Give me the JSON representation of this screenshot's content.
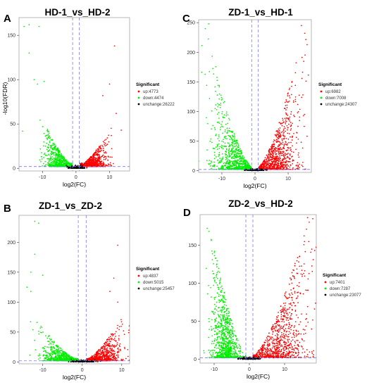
{
  "figure": {
    "panels": [
      {
        "letter": "A",
        "title": "HD-1_vs_HD-2"
      },
      {
        "letter": "C",
        "title": "ZD-1_vs_HD-1"
      },
      {
        "letter": "B",
        "title": "ZD-1_vs_ZD-2"
      },
      {
        "letter": "D",
        "title": "ZD-2_vs_HD-2"
      }
    ],
    "colors": {
      "up": "#ff0000",
      "down": "#00ee00",
      "unchange": "#000000",
      "threshold": "#7777ff"
    }
  },
  "chart_data": [
    {
      "type": "scatter",
      "subtype": "volcano",
      "title": "HD-1_vs_HD-2",
      "xlabel": "log2(FC)",
      "ylabel": "-log10(FDR)",
      "xlim": [
        -17,
        16
      ],
      "ylim": [
        -3,
        170
      ],
      "xticks": [
        -10,
        0,
        10
      ],
      "yticks": [
        0,
        50,
        100,
        150
      ],
      "thresholds": {
        "log2fc": [
          -1,
          1
        ],
        "neg_log10_fdr": 2
      },
      "legend": {
        "title": "Significant",
        "position": "right",
        "entries": [
          {
            "label": "up:4773",
            "color": "#ff0000"
          },
          {
            "label": "down:4474",
            "color": "#00ee00"
          },
          {
            "label": "unchange:26222",
            "color": "#000000"
          }
        ]
      },
      "series": [
        {
          "name": "up",
          "count": 4773,
          "shape": [
            5.0,
            10.5,
            4.0,
            45
          ],
          "outliers": [
            [
              11.5,
              138
            ],
            [
              10,
              95
            ],
            [
              8,
              82
            ],
            [
              12,
              62
            ],
            [
              13.5,
              43
            ]
          ]
        },
        {
          "name": "down",
          "count": 4474,
          "shape": [
            -5.0,
            10.5,
            4.0,
            60
          ],
          "outliers": [
            [
              -15.5,
              160
            ],
            [
              -14,
              162
            ],
            [
              -11,
              160
            ],
            [
              -9.5,
              98
            ],
            [
              -11.5,
              95
            ],
            [
              -12.5,
              100
            ],
            [
              -14,
              130
            ],
            [
              -16,
              42
            ]
          ]
        },
        {
          "name": "unchange",
          "count": 26222
        }
      ]
    },
    {
      "type": "scatter",
      "subtype": "volcano",
      "title": "ZD-1_vs_HD-1",
      "xlabel": "log2(FC)",
      "ylabel": "",
      "xlim": [
        -17,
        17
      ],
      "ylim": [
        -3,
        255
      ],
      "xticks": [
        -10,
        0,
        10
      ],
      "yticks": [
        0,
        50,
        100,
        150,
        200,
        250
      ],
      "thresholds": {
        "log2fc": [
          -1,
          1
        ],
        "neg_log10_fdr": 2
      },
      "legend": {
        "title": "Significant",
        "position": "right",
        "entries": [
          {
            "label": "up:6982",
            "color": "#ff0000"
          },
          {
            "label": "down:7008",
            "color": "#00ee00"
          },
          {
            "label": "unchange:24307",
            "color": "#000000"
          }
        ]
      },
      "series": [
        {
          "name": "up",
          "count": 6982,
          "shape": [
            6.0,
            14.5,
            6.5,
            240
          ],
          "outliers": [
            [
              15,
              232
            ],
            [
              14,
              245
            ]
          ]
        },
        {
          "name": "down",
          "count": 7008,
          "shape": [
            -6.0,
            14.5,
            6.5,
            240
          ],
          "outliers": [
            [
              -15,
              240
            ],
            [
              -14,
              248
            ]
          ]
        },
        {
          "name": "unchange",
          "count": 24307
        }
      ]
    },
    {
      "type": "scatter",
      "subtype": "volcano",
      "title": "ZD-1_vs_ZD-2",
      "xlabel": "log2(FC)",
      "ylabel": "",
      "xlim": [
        -16,
        12
      ],
      "ylim": [
        -3,
        245
      ],
      "xticks": [
        -10,
        0,
        10
      ],
      "yticks": [
        0,
        50,
        100,
        150,
        200
      ],
      "thresholds": {
        "log2fc": [
          -1,
          1
        ],
        "neg_log10_fdr": 2
      },
      "legend": {
        "title": "Significant",
        "position": "right",
        "entries": [
          {
            "label": "up:4837",
            "color": "#ff0000"
          },
          {
            "label": "down:5015",
            "color": "#00ee00"
          },
          {
            "label": "unchange:25457",
            "color": "#000000"
          }
        ]
      },
      "series": [
        {
          "name": "up",
          "count": 4837,
          "shape": [
            5.0,
            10.0,
            5.0,
            75
          ],
          "outliers": [
            [
              9,
              195
            ],
            [
              8,
              140
            ],
            [
              7,
              118
            ],
            [
              9,
              100
            ]
          ]
        },
        {
          "name": "down",
          "count": 5015,
          "shape": [
            -5.0,
            13.5,
            5.0,
            90
          ],
          "outliers": [
            [
              -12,
              235
            ],
            [
              -11,
              232
            ],
            [
              -13,
              150
            ],
            [
              -12,
              180
            ],
            [
              -14,
              125
            ],
            [
              -13,
              118
            ],
            [
              -10,
              145
            ]
          ]
        },
        {
          "name": "unchange",
          "count": 25457
        }
      ]
    },
    {
      "type": "scatter",
      "subtype": "volcano",
      "title": "ZD-2_vs_HD-2",
      "xlabel": "log2(FC)",
      "ylabel": "",
      "xlim": [
        -14,
        19
      ],
      "ylim": [
        -5,
        190
      ],
      "xticks": [
        -10,
        0,
        10
      ],
      "yticks": [
        0,
        50,
        100,
        150
      ],
      "thresholds": {
        "log2fc": [
          -1,
          1
        ],
        "neg_log10_fdr": 2
      },
      "legend": {
        "title": "Significant",
        "position": "right",
        "entries": [
          {
            "label": "up:7401",
            "color": "#ff0000"
          },
          {
            "label": "down:7287",
            "color": "#00ee00"
          },
          {
            "label": "unchange:23077",
            "color": "#000000"
          }
        ]
      },
      "series": [
        {
          "name": "up",
          "count": 7401,
          "shape": [
            8.5,
            16.5,
            7.5,
            185
          ],
          "outliers": [
            [
              16.5,
              186
            ],
            [
              17,
              180
            ]
          ]
        },
        {
          "name": "down",
          "count": 7287,
          "shape": [
            -7.0,
            10.5,
            3.5,
            160
          ],
          "outliers": [
            [
              -12,
              172
            ],
            [
              -11.5,
              168
            ]
          ]
        },
        {
          "name": "unchange",
          "count": 23077
        }
      ]
    }
  ]
}
